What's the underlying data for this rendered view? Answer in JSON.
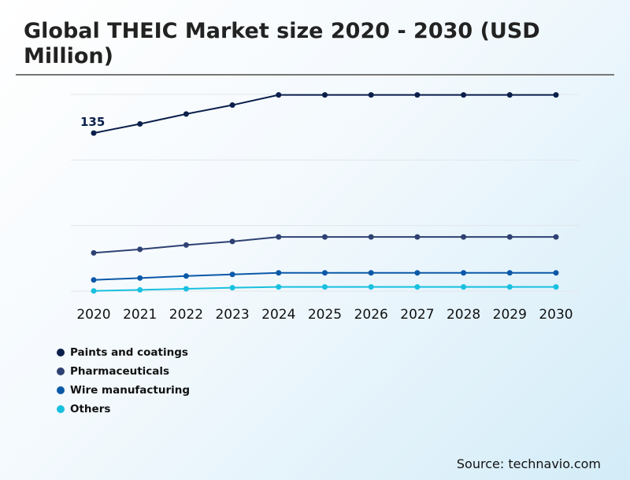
{
  "title": "Global THEIC Market size 2020 - 2030 (USD Million)",
  "source": "Source: technavio.com",
  "chart_data": {
    "type": "line",
    "title": "Global THEIC Market size 2020 - 2030 (USD Million)",
    "x": [
      "2020",
      "2021",
      "2022",
      "2023",
      "2024",
      "2025",
      "2026",
      "2027",
      "2028",
      "2029",
      "2030"
    ],
    "ylim": [
      0,
      168
    ],
    "grid": true,
    "legend_placement": "bottom-left",
    "data_labels": [
      {
        "series": "Paints and coatings",
        "x": "2020",
        "text": "135"
      }
    ],
    "series": [
      {
        "name": "Paints and coatings",
        "color": "#0b1f4b",
        "values": [
          135,
          142.8,
          151.3,
          158.9,
          167.6,
          167.6,
          167.6,
          167.6,
          167.6,
          167.6,
          167.6
        ]
      },
      {
        "name": "Pharmaceuticals",
        "color": "#2e4172",
        "values": [
          32.7,
          35.7,
          39.4,
          42.4,
          46.3,
          46.3,
          46.3,
          46.3,
          46.3,
          46.3,
          46.3
        ]
      },
      {
        "name": "Wire manufacturing",
        "color": "#0a58a8",
        "values": [
          9.6,
          11.2,
          12.9,
          14.3,
          15.6,
          15.6,
          15.6,
          15.6,
          15.6,
          15.6,
          15.6
        ]
      },
      {
        "name": "Others",
        "color": "#18c0e0",
        "values": [
          0.2,
          1.1,
          2.0,
          2.9,
          3.6,
          3.6,
          3.6,
          3.6,
          3.6,
          3.6,
          3.6
        ]
      }
    ]
  }
}
